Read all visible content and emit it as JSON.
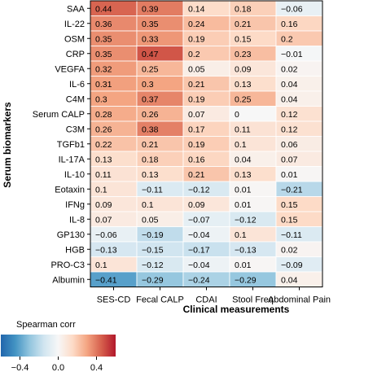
{
  "chart_data": {
    "type": "heatmap",
    "rows": [
      "SAA",
      "IL-22",
      "OSM",
      "CRP",
      "VEGFA",
      "IL-6",
      "C4M",
      "Serum CALP",
      "C3M",
      "TGFb1",
      "IL-17A",
      "IL-10",
      "Eotaxin",
      "IFNg",
      "IL-8",
      "GP130",
      "HGB",
      "PRO-C3",
      "Albumin"
    ],
    "columns": [
      "SES-CD",
      "Fecal CALP",
      "CDAI",
      "Stool Freq",
      "Abdominal Pain"
    ],
    "values": [
      [
        0.44,
        0.39,
        0.14,
        0.18,
        -0.06
      ],
      [
        0.36,
        0.35,
        0.24,
        0.21,
        0.16
      ],
      [
        0.35,
        0.33,
        0.19,
        0.15,
        0.2
      ],
      [
        0.35,
        0.47,
        0.2,
        0.23,
        -0.01
      ],
      [
        0.32,
        0.25,
        0.05,
        0.09,
        0.02
      ],
      [
        0.31,
        0.3,
        0.21,
        0.13,
        0.04
      ],
      [
        0.3,
        0.37,
        0.19,
        0.25,
        0.04
      ],
      [
        0.28,
        0.26,
        0.07,
        0,
        0.12
      ],
      [
        0.26,
        0.38,
        0.17,
        0.11,
        0.12
      ],
      [
        0.22,
        0.21,
        0.19,
        0.1,
        0.06
      ],
      [
        0.13,
        0.18,
        0.16,
        0.04,
        0.07
      ],
      [
        0.11,
        0.13,
        0.21,
        0.13,
        0.01
      ],
      [
        0.1,
        -0.11,
        -0.12,
        0.01,
        -0.21
      ],
      [
        0.09,
        0.1,
        0.09,
        0.01,
        0.15
      ],
      [
        0.07,
        0.05,
        -0.07,
        -0.12,
        0.15
      ],
      [
        -0.06,
        -0.19,
        -0.04,
        0.1,
        -0.11
      ],
      [
        -0.13,
        -0.15,
        -0.17,
        -0.13,
        0.02
      ],
      [
        0.1,
        -0.12,
        -0.04,
        0.01,
        -0.09
      ],
      [
        -0.41,
        -0.29,
        -0.24,
        -0.29,
        0.04
      ]
    ],
    "value_labels": [
      [
        "0.44",
        "0.39",
        "0.14",
        "0.18",
        "−0.06"
      ],
      [
        "0.36",
        "0.35",
        "0.24",
        "0.21",
        "0.16"
      ],
      [
        "0.35",
        "0.33",
        "0.19",
        "0.15",
        "0.2"
      ],
      [
        "0.35",
        "0.47",
        "0.2",
        "0.23",
        "−0.01"
      ],
      [
        "0.32",
        "0.25",
        "0.05",
        "0.09",
        "0.02"
      ],
      [
        "0.31",
        "0.3",
        "0.21",
        "0.13",
        "0.04"
      ],
      [
        "0.3",
        "0.37",
        "0.19",
        "0.25",
        "0.04"
      ],
      [
        "0.28",
        "0.26",
        "0.07",
        "0",
        "0.12"
      ],
      [
        "0.26",
        "0.38",
        "0.17",
        "0.11",
        "0.12"
      ],
      [
        "0.22",
        "0.21",
        "0.19",
        "0.1",
        "0.06"
      ],
      [
        "0.13",
        "0.18",
        "0.16",
        "0.04",
        "0.07"
      ],
      [
        "0.11",
        "0.13",
        "0.21",
        "0.13",
        "0.01"
      ],
      [
        "0.1",
        "−0.11",
        "−0.12",
        "0.01",
        "−0.21"
      ],
      [
        "0.09",
        "0.1",
        "0.09",
        "0.01",
        "0.15"
      ],
      [
        "0.07",
        "0.05",
        "−0.07",
        "−0.12",
        "0.15"
      ],
      [
        "−0.06",
        "−0.19",
        "−0.04",
        "0.1",
        "−0.11"
      ],
      [
        "−0.13",
        "−0.15",
        "−0.17",
        "−0.13",
        "0.02"
      ],
      [
        "0.1",
        "−0.12",
        "−0.04",
        "0.01",
        "−0.09"
      ],
      [
        "−0.41",
        "−0.29",
        "−0.24",
        "−0.29",
        "0.04"
      ]
    ],
    "xlabel": "Clinical measurements",
    "ylabel": "Serum biomarkers",
    "colorbar": {
      "title": "Spearman corr",
      "range": [
        -0.6,
        0.6
      ],
      "ticks": [
        -0.4,
        0.0,
        0.4
      ],
      "tick_labels": [
        "−0.4",
        "0.0",
        "0.4"
      ],
      "colors": [
        "#2166ac",
        "#4393c3",
        "#92c5de",
        "#d1e5f0",
        "#f7f7f7",
        "#fddbc7",
        "#f4a582",
        "#d6604d",
        "#b2182b"
      ]
    },
    "grid": true,
    "legend": "bottom-left"
  }
}
